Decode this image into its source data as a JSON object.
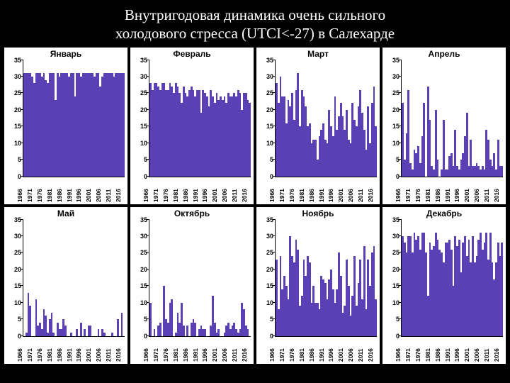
{
  "title_line1": "Внутригодовая динамика очень сильного",
  "title_line2": "холодового стресса (UTCI<-27) в Салехарде",
  "page_bg": "#000000",
  "panel_bg": "#ffffff",
  "bar_color": "#5a3fb5",
  "axis_color": "#000000",
  "title_color": "#ffffff",
  "title_fontsize": 21,
  "panel_title_fontsize": 12,
  "tick_fontsize": 9,
  "ylim": [
    0,
    35
  ],
  "ytick_step": 5,
  "yticks": [
    0,
    5,
    10,
    15,
    20,
    25,
    30,
    35
  ],
  "x_start": 1966,
  "x_end": 2017,
  "x_label_step": 5,
  "x_labels": [
    1966,
    1971,
    1976,
    1981,
    1986,
    1991,
    1996,
    2001,
    2006,
    2011,
    2016
  ],
  "panels": [
    {
      "title": "Январь",
      "values": [
        31,
        31,
        31,
        31,
        30,
        28,
        31,
        31,
        31,
        30,
        31,
        29,
        28,
        31,
        31,
        31,
        23,
        31,
        30,
        31,
        31,
        31,
        31,
        30,
        31,
        31,
        24,
        31,
        31,
        30,
        31,
        31,
        31,
        31,
        31,
        31,
        30,
        31,
        31,
        27,
        30,
        31,
        31,
        31,
        31,
        31,
        30,
        31,
        31,
        31,
        31,
        31
      ]
    },
    {
      "title": "Февраль",
      "values": [
        28,
        26,
        28,
        28,
        27,
        26,
        28,
        28,
        26,
        26,
        28,
        27,
        25,
        28,
        27,
        25,
        22,
        27,
        25,
        24,
        26,
        27,
        26,
        24,
        26,
        26,
        19,
        26,
        25,
        24,
        21,
        26,
        24,
        22,
        25,
        23,
        24,
        23,
        24,
        22,
        25,
        24,
        24,
        25,
        24,
        26,
        25,
        20,
        25,
        25,
        23,
        22
      ]
    },
    {
      "title": "Март",
      "values": [
        28,
        22,
        30,
        24,
        24,
        16,
        23,
        21,
        25,
        17,
        26,
        31,
        15,
        26,
        24,
        21,
        15,
        16,
        10,
        11,
        11,
        5,
        12,
        14,
        16,
        11,
        10,
        20,
        15,
        12,
        24,
        14,
        18,
        22,
        18,
        14,
        20,
        11,
        10,
        22,
        17,
        15,
        21,
        26,
        19,
        14,
        8,
        21,
        10,
        22,
        27,
        15
      ]
    },
    {
      "title": "Апрель",
      "values": [
        22,
        5,
        13,
        26,
        4,
        2,
        8,
        7,
        9,
        4,
        12,
        22,
        0,
        27,
        17,
        3,
        2,
        20,
        5,
        0,
        2,
        17,
        2,
        2,
        6,
        7,
        3,
        14,
        3,
        2,
        5,
        7,
        12,
        19,
        3,
        11,
        3,
        3,
        4,
        3,
        2,
        3,
        2,
        14,
        11,
        5,
        3,
        7,
        2,
        11,
        3,
        3
      ]
    },
    {
      "title": "Май",
      "values": [
        0,
        1,
        13,
        9,
        0,
        0,
        11,
        3,
        4,
        2,
        8,
        6,
        1,
        5,
        7,
        1,
        0,
        4,
        2,
        2,
        5,
        3,
        0,
        0,
        1,
        0,
        0,
        2,
        0,
        4,
        0,
        2,
        0,
        3,
        3,
        0,
        0,
        0,
        2,
        0,
        2,
        1,
        0,
        0,
        0,
        1,
        0,
        0,
        5,
        0,
        7,
        0
      ]
    },
    {
      "title": "Октябрь",
      "values": [
        10,
        0,
        2,
        0,
        3,
        4,
        0,
        15,
        5,
        4,
        10,
        11,
        0,
        1,
        7,
        4,
        10,
        3,
        0,
        3,
        0,
        4,
        5,
        4,
        0,
        2,
        3,
        2,
        2,
        0,
        0,
        3,
        12,
        4,
        1,
        2,
        0,
        0,
        1,
        3,
        4,
        2,
        3,
        4,
        2,
        1,
        2,
        10,
        8,
        3,
        2,
        0
      ]
    },
    {
      "title": "Ноябрь",
      "values": [
        23,
        8,
        24,
        14,
        18,
        15,
        11,
        30,
        24,
        22,
        29,
        26,
        9,
        12,
        23,
        18,
        24,
        22,
        10,
        15,
        10,
        10,
        8,
        18,
        17,
        16,
        11,
        17,
        20,
        14,
        10,
        14,
        25,
        18,
        7,
        9,
        23,
        15,
        6,
        12,
        24,
        9,
        16,
        23,
        11,
        27,
        8,
        23,
        15,
        25,
        27,
        11
      ]
    },
    {
      "title": "Декабрь",
      "values": [
        30,
        28,
        25,
        30,
        30,
        25,
        31,
        29,
        30,
        26,
        31,
        31,
        25,
        12,
        28,
        26,
        27,
        31,
        29,
        26,
        25,
        22,
        28,
        28,
        29,
        26,
        15,
        30,
        27,
        29,
        19,
        28,
        30,
        24,
        29,
        22,
        30,
        22,
        24,
        29,
        31,
        26,
        28,
        31,
        23,
        31,
        22,
        17,
        22,
        28,
        24,
        28
      ]
    }
  ]
}
